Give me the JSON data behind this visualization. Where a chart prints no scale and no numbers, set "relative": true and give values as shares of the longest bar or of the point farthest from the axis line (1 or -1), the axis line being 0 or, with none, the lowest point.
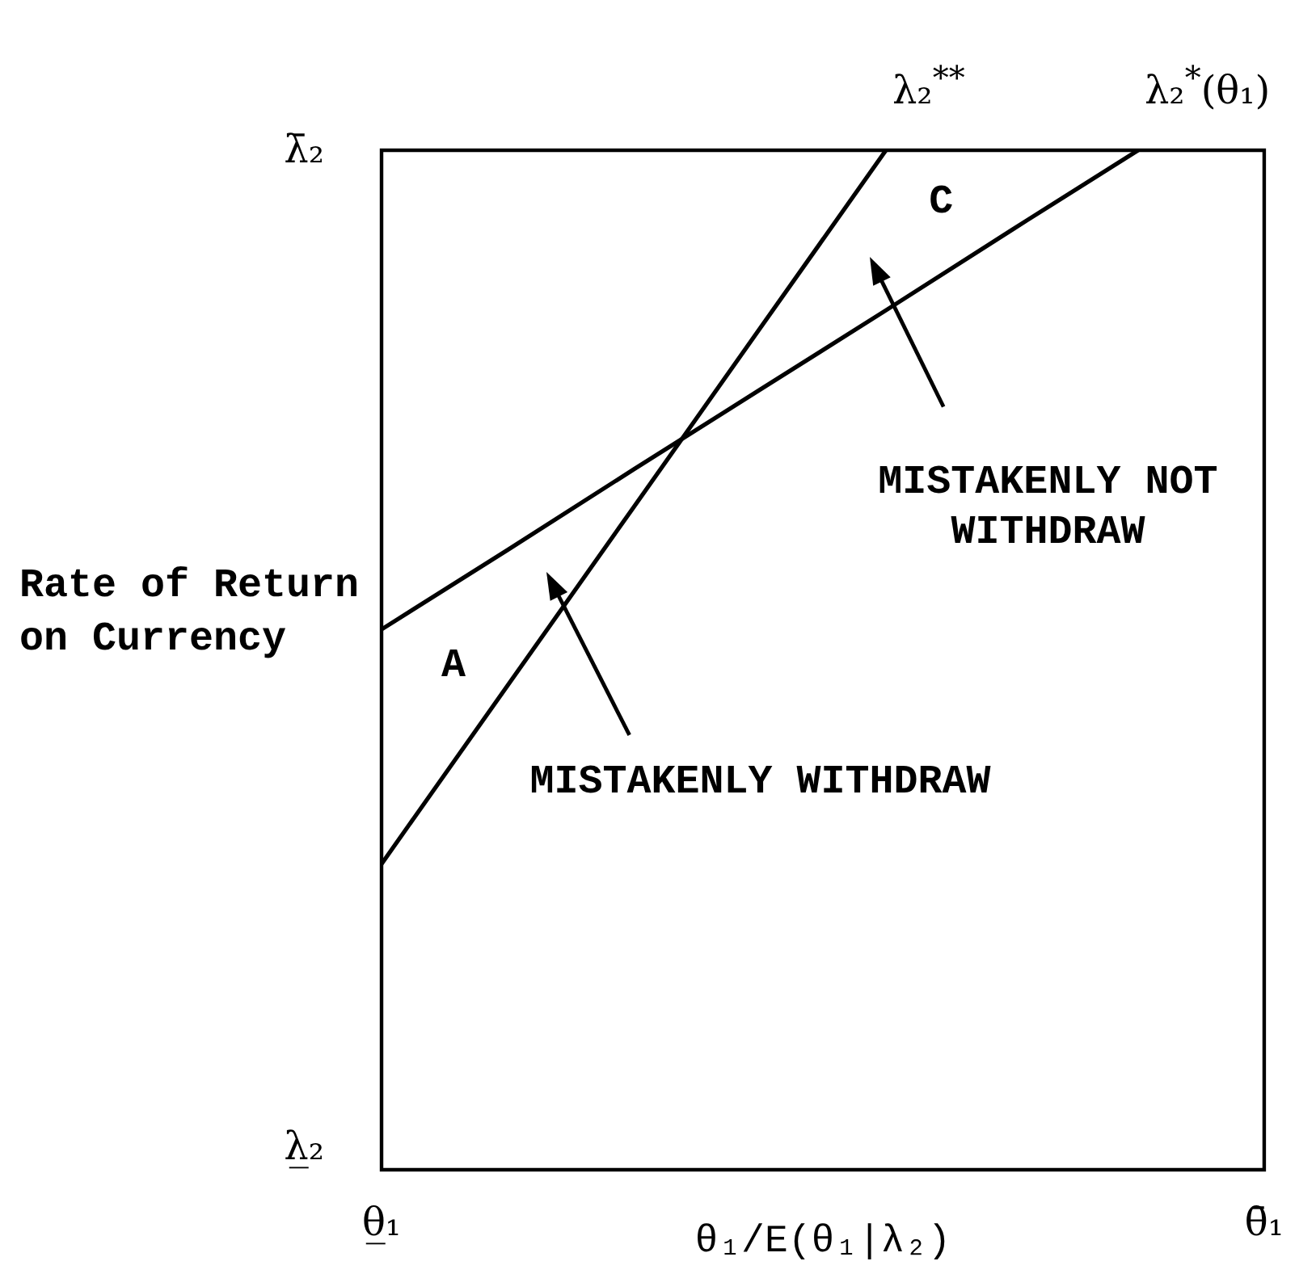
{
  "chart_data": {
    "type": "line",
    "relative": true,
    "xlabel": "θ₁/E(θ₁|λ₂)",
    "ylabel": "Rate of Return on Currency",
    "categories": [
      "θ̲₁",
      null,
      null,
      null,
      null,
      null,
      null,
      "θ̄₁"
    ],
    "series": [
      {
        "name": "λ₂$^{**}$",
        "color": "#000000",
        "values": [
          0.3,
          0.475,
          0.65,
          0.825,
          1,
          null,
          null,
          null
        ]
      },
      {
        "name": "λ₂$^{*}$(θ₁)",
        "color": "#000000",
        "values": [
          0.53,
          0.608,
          0.687,
          0.765,
          0.843,
          0.922,
          1,
          null
        ]
      }
    ],
    "annotations": [
      "λ̄₂",
      "λ̲₂",
      "A",
      "C",
      "MISTAKENLY WITHDRAW",
      "MISTAKENLY NOT WITHDRAW"
    ],
    "legend": false,
    "marker": "none",
    "line_style": "solid"
  }
}
